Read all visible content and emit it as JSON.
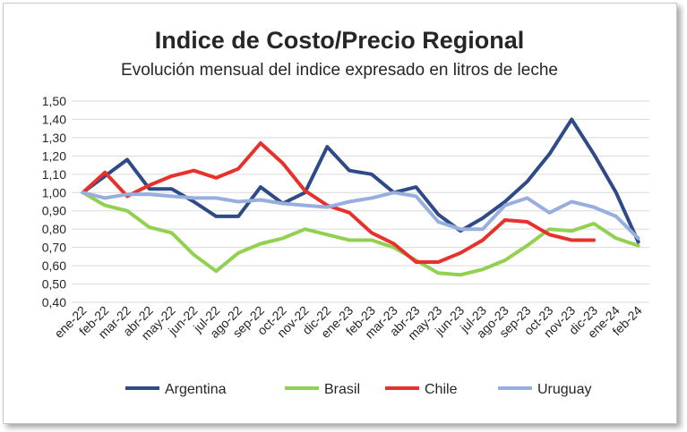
{
  "chart_data": {
    "type": "line",
    "title": "Indice de Costo/Precio Regional",
    "subtitle": "Evolución mensual del indice expresado en litros de leche",
    "xlabel": "",
    "ylabel": "",
    "ylim": [
      0.4,
      1.5
    ],
    "ytick_step": 0.1,
    "grid": true,
    "legend_position": "bottom",
    "categories": [
      "ene-22",
      "feb-22",
      "mar-22",
      "abr-22",
      "may-22",
      "jun-22",
      "jul-22",
      "ago-22",
      "sep-22",
      "oct-22",
      "nov-22",
      "dic-22",
      "ene-23",
      "feb-23",
      "mar-23",
      "abr-23",
      "may-23",
      "jun-23",
      "jul-23",
      "ago-23",
      "sep-23",
      "oct-23",
      "nov-23",
      "dic-23",
      "ene-24",
      "feb-24"
    ],
    "series": [
      {
        "name": "Argentina",
        "color": "#2e4a87",
        "values": [
          1.0,
          1.09,
          1.18,
          1.02,
          1.02,
          0.95,
          0.87,
          0.87,
          1.03,
          0.94,
          1.0,
          1.25,
          1.12,
          1.1,
          1.0,
          1.03,
          0.88,
          0.79,
          0.86,
          0.95,
          1.06,
          1.21,
          1.4,
          1.21,
          1.0,
          0.73
        ]
      },
      {
        "name": "Brasil",
        "color": "#92d050",
        "values": [
          1.0,
          0.93,
          0.9,
          0.81,
          0.78,
          0.66,
          0.57,
          0.67,
          0.72,
          0.75,
          0.8,
          0.77,
          0.74,
          0.74,
          0.7,
          0.63,
          0.56,
          0.55,
          0.58,
          0.63,
          0.71,
          0.8,
          0.79,
          0.83,
          0.75,
          0.71
        ]
      },
      {
        "name": "Chile",
        "color": "#e8312a",
        "values": [
          1.0,
          1.11,
          0.98,
          1.04,
          1.09,
          1.12,
          1.08,
          1.13,
          1.27,
          1.16,
          1.01,
          0.93,
          0.89,
          0.78,
          0.72,
          0.62,
          0.62,
          0.67,
          0.74,
          0.85,
          0.84,
          0.77,
          0.74,
          0.74,
          null,
          null
        ]
      },
      {
        "name": "Uruguay",
        "color": "#98aedf",
        "values": [
          1.0,
          0.97,
          0.99,
          0.99,
          0.98,
          0.97,
          0.97,
          0.95,
          0.96,
          0.94,
          0.93,
          0.92,
          0.95,
          0.97,
          1.0,
          0.98,
          0.84,
          0.8,
          0.8,
          0.93,
          0.97,
          0.89,
          0.95,
          0.92,
          0.87,
          0.75
        ]
      }
    ]
  }
}
